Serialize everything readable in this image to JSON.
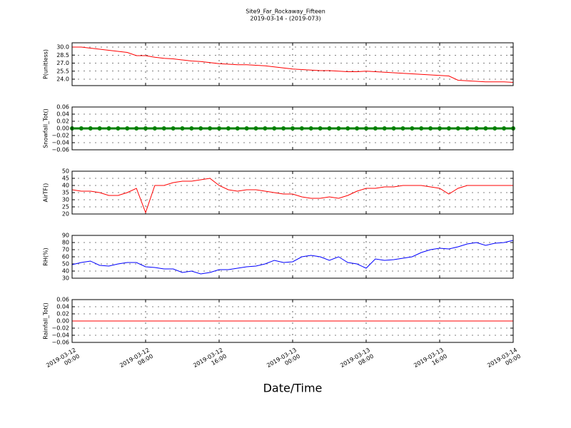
{
  "chart_data": [
    {
      "type": "line",
      "title": "Site9_Far_Rockaway_Fifteen",
      "subtitle": "2019-03-14 - (2019-073)",
      "y_label": "P(unitless)",
      "xlim": [
        "2019-03-12 00:00",
        "2019-03-14 00:00"
      ],
      "ylim": [
        22.8,
        30.8
      ],
      "yticks": [
        {
          "value": 30,
          "label": "30.0"
        },
        28.5,
        {
          "value": 27,
          "label": "27.0"
        },
        25.5,
        {
          "value": 24,
          "label": "24.0"
        }
      ],
      "grid": true,
      "x": [
        "2019-03-12 00:00",
        "2019-03-12 01:00",
        "2019-03-12 02:00",
        "2019-03-12 03:00",
        "2019-03-12 04:00",
        "2019-03-12 05:00",
        "2019-03-12 06:00",
        "2019-03-12 07:00",
        "2019-03-12 08:00",
        "2019-03-12 09:00",
        "2019-03-12 10:00",
        "2019-03-12 11:00",
        "2019-03-12 12:00",
        "2019-03-12 13:00",
        "2019-03-12 14:00",
        "2019-03-12 15:00",
        "2019-03-12 16:00",
        "2019-03-12 17:00",
        "2019-03-12 18:00",
        "2019-03-12 19:00",
        "2019-03-12 20:00",
        "2019-03-12 21:00",
        "2019-03-12 22:00",
        "2019-03-12 23:00",
        "2019-03-13 00:00",
        "2019-03-13 01:00",
        "2019-03-13 02:00",
        "2019-03-13 03:00",
        "2019-03-13 04:00",
        "2019-03-13 05:00",
        "2019-03-13 06:00",
        "2019-03-13 07:00",
        "2019-03-13 08:00",
        "2019-03-13 09:00",
        "2019-03-13 10:00",
        "2019-03-13 11:00",
        "2019-03-13 12:00",
        "2019-03-13 13:00",
        "2019-03-13 14:00",
        "2019-03-13 15:00",
        "2019-03-13 16:00",
        "2019-03-13 17:00",
        "2019-03-13 18:00",
        "2019-03-13 19:00",
        "2019-03-13 20:00",
        "2019-03-13 21:00",
        "2019-03-13 22:00",
        "2019-03-13 23:00",
        "2019-03-14 00:00"
      ],
      "series": [
        {
          "color": "#ff0000",
          "values": [
            30.0,
            30.0,
            29.8,
            29.6,
            29.4,
            29.2,
            29.0,
            28.4,
            28.4,
            28.1,
            27.9,
            27.8,
            27.6,
            27.4,
            27.3,
            27.1,
            26.9,
            26.8,
            26.7,
            26.7,
            26.6,
            26.5,
            26.3,
            26.1,
            25.9,
            25.8,
            25.7,
            25.6,
            25.6,
            25.5,
            25.4,
            25.4,
            25.5,
            25.4,
            25.3,
            25.2,
            25.1,
            25.0,
            24.9,
            24.8,
            24.7,
            24.6,
            23.8,
            23.7,
            23.6,
            23.5,
            23.5,
            23.5,
            23.4
          ]
        }
      ]
    },
    {
      "type": "line",
      "y_label": "Snowfall_Tot()",
      "xlim": [
        "2019-03-12 00:00",
        "2019-03-14 00:00"
      ],
      "ylim": [
        -0.06,
        0.06
      ],
      "yticks": [
        0.06,
        0.04,
        0.02,
        {
          "value": 0,
          "label": "0.00"
        },
        {
          "value": -0.02,
          "label": "−0.02"
        },
        {
          "value": -0.04,
          "label": "−0.04"
        },
        {
          "value": -0.06,
          "label": "−0.06"
        }
      ],
      "grid": true,
      "x": [
        "2019-03-12 00:00",
        "2019-03-12 01:00",
        "2019-03-12 02:00",
        "2019-03-12 03:00",
        "2019-03-12 04:00",
        "2019-03-12 05:00",
        "2019-03-12 06:00",
        "2019-03-12 07:00",
        "2019-03-12 08:00",
        "2019-03-12 09:00",
        "2019-03-12 10:00",
        "2019-03-12 11:00",
        "2019-03-12 12:00",
        "2019-03-12 13:00",
        "2019-03-12 14:00",
        "2019-03-12 15:00",
        "2019-03-12 16:00",
        "2019-03-12 17:00",
        "2019-03-12 18:00",
        "2019-03-12 19:00",
        "2019-03-12 20:00",
        "2019-03-12 21:00",
        "2019-03-12 22:00",
        "2019-03-12 23:00",
        "2019-03-13 00:00",
        "2019-03-13 01:00",
        "2019-03-13 02:00",
        "2019-03-13 03:00",
        "2019-03-13 04:00",
        "2019-03-13 05:00",
        "2019-03-13 06:00",
        "2019-03-13 07:00",
        "2019-03-13 08:00",
        "2019-03-13 09:00",
        "2019-03-13 10:00",
        "2019-03-13 11:00",
        "2019-03-13 12:00",
        "2019-03-13 13:00",
        "2019-03-13 14:00",
        "2019-03-13 15:00",
        "2019-03-13 16:00",
        "2019-03-13 17:00",
        "2019-03-13 18:00",
        "2019-03-13 19:00",
        "2019-03-13 20:00",
        "2019-03-13 21:00",
        "2019-03-13 22:00",
        "2019-03-13 23:00",
        "2019-03-14 00:00"
      ],
      "series": [
        {
          "color": "#008000",
          "marker": "o",
          "values": [
            0,
            0,
            0,
            0,
            0,
            0,
            0,
            0,
            0,
            0,
            0,
            0,
            0,
            0,
            0,
            0,
            0,
            0,
            0,
            0,
            0,
            0,
            0,
            0,
            0,
            0,
            0,
            0,
            0,
            0,
            0,
            0,
            0,
            0,
            0,
            0,
            0,
            0,
            0,
            0,
            0,
            0,
            0,
            0,
            0,
            0,
            0,
            0,
            0
          ]
        }
      ]
    },
    {
      "type": "line",
      "y_label": "AirTF()",
      "xlim": [
        "2019-03-12 00:00",
        "2019-03-14 00:00"
      ],
      "ylim": [
        20,
        50
      ],
      "yticks": [
        50,
        45,
        40,
        35,
        30,
        25,
        20
      ],
      "grid": true,
      "x": [
        "2019-03-12 00:00",
        "2019-03-12 01:00",
        "2019-03-12 02:00",
        "2019-03-12 03:00",
        "2019-03-12 04:00",
        "2019-03-12 05:00",
        "2019-03-12 06:00",
        "2019-03-12 07:00",
        "2019-03-12 08:00",
        "2019-03-12 09:00",
        "2019-03-12 10:00",
        "2019-03-12 11:00",
        "2019-03-12 12:00",
        "2019-03-12 13:00",
        "2019-03-12 14:00",
        "2019-03-12 15:00",
        "2019-03-12 16:00",
        "2019-03-12 17:00",
        "2019-03-12 18:00",
        "2019-03-12 19:00",
        "2019-03-12 20:00",
        "2019-03-12 21:00",
        "2019-03-12 22:00",
        "2019-03-12 23:00",
        "2019-03-13 00:00",
        "2019-03-13 01:00",
        "2019-03-13 02:00",
        "2019-03-13 03:00",
        "2019-03-13 04:00",
        "2019-03-13 05:00",
        "2019-03-13 06:00",
        "2019-03-13 07:00",
        "2019-03-13 08:00",
        "2019-03-13 09:00",
        "2019-03-13 10:00",
        "2019-03-13 11:00",
        "2019-03-13 12:00",
        "2019-03-13 13:00",
        "2019-03-13 14:00",
        "2019-03-13 15:00",
        "2019-03-13 16:00",
        "2019-03-13 17:00",
        "2019-03-13 18:00",
        "2019-03-13 19:00",
        "2019-03-13 20:00",
        "2019-03-13 21:00",
        "2019-03-13 22:00",
        "2019-03-13 23:00",
        "2019-03-14 00:00"
      ],
      "series": [
        {
          "color": "#ff0000",
          "values": [
            37,
            36,
            36,
            35,
            33,
            33,
            35,
            38,
            21,
            40,
            40,
            42,
            43,
            43,
            44,
            45,
            40,
            37,
            36,
            37,
            37,
            36,
            35,
            34,
            34,
            32,
            31,
            31,
            32,
            31,
            33,
            36,
            38,
            38,
            39,
            39,
            40,
            40,
            40,
            39,
            38,
            34,
            38,
            40,
            40,
            40,
            40,
            40,
            40
          ]
        }
      ]
    },
    {
      "type": "line",
      "y_label": "RH(%)",
      "xlim": [
        "2019-03-12 00:00",
        "2019-03-14 00:00"
      ],
      "ylim": [
        30,
        90
      ],
      "yticks": [
        90,
        80,
        70,
        60,
        50,
        40,
        30
      ],
      "grid": true,
      "x": [
        "2019-03-12 00:00",
        "2019-03-12 01:00",
        "2019-03-12 02:00",
        "2019-03-12 03:00",
        "2019-03-12 04:00",
        "2019-03-12 05:00",
        "2019-03-12 06:00",
        "2019-03-12 07:00",
        "2019-03-12 08:00",
        "2019-03-12 09:00",
        "2019-03-12 10:00",
        "2019-03-12 11:00",
        "2019-03-12 12:00",
        "2019-03-12 13:00",
        "2019-03-12 14:00",
        "2019-03-12 15:00",
        "2019-03-12 16:00",
        "2019-03-12 17:00",
        "2019-03-12 18:00",
        "2019-03-12 19:00",
        "2019-03-12 20:00",
        "2019-03-12 21:00",
        "2019-03-12 22:00",
        "2019-03-12 23:00",
        "2019-03-13 00:00",
        "2019-03-13 01:00",
        "2019-03-13 02:00",
        "2019-03-13 03:00",
        "2019-03-13 04:00",
        "2019-03-13 05:00",
        "2019-03-13 06:00",
        "2019-03-13 07:00",
        "2019-03-13 08:00",
        "2019-03-13 09:00",
        "2019-03-13 10:00",
        "2019-03-13 11:00",
        "2019-03-13 12:00",
        "2019-03-13 13:00",
        "2019-03-13 14:00",
        "2019-03-13 15:00",
        "2019-03-13 16:00",
        "2019-03-13 17:00",
        "2019-03-13 18:00",
        "2019-03-13 19:00",
        "2019-03-13 20:00",
        "2019-03-13 21:00",
        "2019-03-13 22:00",
        "2019-03-13 23:00",
        "2019-03-14 00:00"
      ],
      "series": [
        {
          "color": "#0000ff",
          "values": [
            49,
            52,
            54,
            48,
            47,
            50,
            52,
            52,
            46,
            45,
            43,
            43,
            38,
            40,
            36,
            38,
            42,
            42,
            44,
            46,
            47,
            50,
            55,
            52,
            53,
            60,
            62,
            60,
            55,
            60,
            52,
            50,
            44,
            57,
            55,
            56,
            58,
            60,
            66,
            70,
            72,
            71,
            74,
            78,
            80,
            76,
            79,
            80,
            83
          ]
        }
      ]
    },
    {
      "type": "line",
      "y_label": "Rainfall_Tot()",
      "x_label": "Date/Time",
      "xlim": [
        "2019-03-12 00:00",
        "2019-03-14 00:00"
      ],
      "xticks": [
        {
          "value": "2019-03-12 00:00",
          "label": "2019-03-12\n00:00"
        },
        {
          "value": "2019-03-12 08:00",
          "label": "2019-03-12\n08:00"
        },
        {
          "value": "2019-03-12 16:00",
          "label": "2019-03-12\n16:00"
        },
        {
          "value": "2019-03-13 00:00",
          "label": "2019-03-13\n00:00"
        },
        {
          "value": "2019-03-13 08:00",
          "label": "2019-03-13\n08:00"
        },
        {
          "value": "2019-03-13 16:00",
          "label": "2019-03-13\n16:00"
        },
        {
          "value": "2019-03-14 00:00",
          "label": "2019-03-14\n00:00"
        }
      ],
      "ylim": [
        -0.06,
        0.06
      ],
      "yticks": [
        0.06,
        0.04,
        0.02,
        {
          "value": 0,
          "label": "0.00"
        },
        {
          "value": -0.02,
          "label": "−0.02"
        },
        {
          "value": -0.04,
          "label": "−0.04"
        },
        {
          "value": -0.06,
          "label": "−0.06"
        }
      ],
      "grid": true,
      "x": [
        "2019-03-12 00:00",
        "2019-03-12 01:00",
        "2019-03-12 02:00",
        "2019-03-12 03:00",
        "2019-03-12 04:00",
        "2019-03-12 05:00",
        "2019-03-12 06:00",
        "2019-03-12 07:00",
        "2019-03-12 08:00",
        "2019-03-12 09:00",
        "2019-03-12 10:00",
        "2019-03-12 11:00",
        "2019-03-12 12:00",
        "2019-03-12 13:00",
        "2019-03-12 14:00",
        "2019-03-12 15:00",
        "2019-03-12 16:00",
        "2019-03-12 17:00",
        "2019-03-12 18:00",
        "2019-03-12 19:00",
        "2019-03-12 20:00",
        "2019-03-12 21:00",
        "2019-03-12 22:00",
        "2019-03-12 23:00",
        "2019-03-13 00:00",
        "2019-03-13 01:00",
        "2019-03-13 02:00",
        "2019-03-13 03:00",
        "2019-03-13 04:00",
        "2019-03-13 05:00",
        "2019-03-13 06:00",
        "2019-03-13 07:00",
        "2019-03-13 08:00",
        "2019-03-13 09:00",
        "2019-03-13 10:00",
        "2019-03-13 11:00",
        "2019-03-13 12:00",
        "2019-03-13 13:00",
        "2019-03-13 14:00",
        "2019-03-13 15:00",
        "2019-03-13 16:00",
        "2019-03-13 17:00",
        "2019-03-13 18:00",
        "2019-03-13 19:00",
        "2019-03-13 20:00",
        "2019-03-13 21:00",
        "2019-03-13 22:00",
        "2019-03-13 23:00",
        "2019-03-14 00:00"
      ],
      "series": [
        {
          "color": "#ff0000",
          "values": [
            0,
            0,
            0,
            0,
            0,
            0,
            0,
            0,
            0,
            0,
            0,
            0,
            0,
            0,
            0,
            0,
            0,
            0,
            0,
            0,
            0,
            0,
            0,
            0,
            0,
            0,
            0,
            0,
            0,
            0,
            0,
            0,
            0,
            0,
            0,
            0,
            0,
            0,
            0,
            0,
            0,
            0,
            0,
            0,
            0,
            0,
            0,
            0,
            0
          ]
        }
      ]
    }
  ]
}
